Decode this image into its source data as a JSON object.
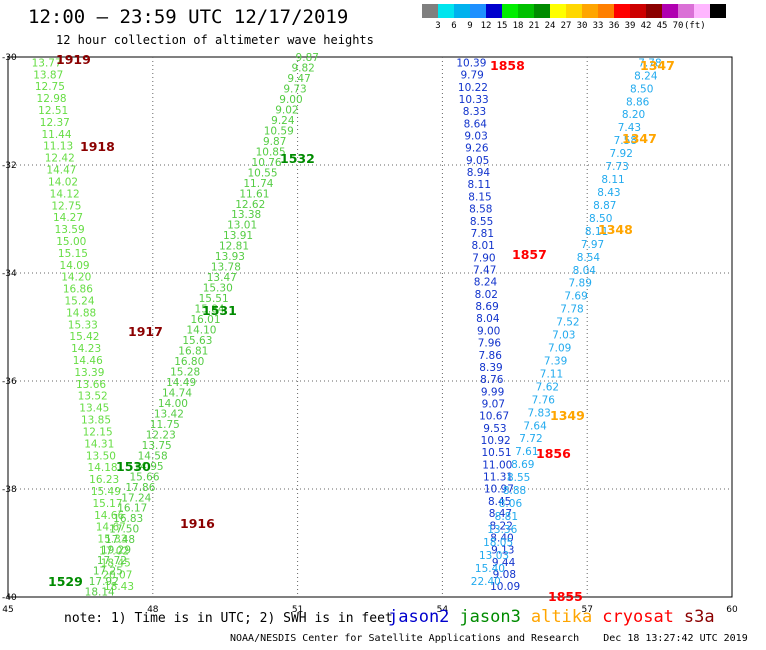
{
  "title": "12:00 – 23:59 UTC 12/17/2019",
  "subtitle": "12 hour collection of altimeter wave heights",
  "colorbar": {
    "colors": [
      "#7f7f7f",
      "#00e5ee",
      "#00b2ee",
      "#1e90ff",
      "#0000cd",
      "#00ee00",
      "#00c000",
      "#008b00",
      "#ffff00",
      "#ffd700",
      "#ffa500",
      "#ff7f00",
      "#ff0000",
      "#cd0000",
      "#8b0000",
      "#b000b0",
      "#da70d6",
      "#ffb6ff",
      "#000000"
    ],
    "labels": [
      "3",
      "6",
      "9",
      "12",
      "15",
      "18",
      "21",
      "24",
      "27",
      "30",
      "33",
      "36",
      "39",
      "42",
      "45",
      "70",
      "(ft)"
    ]
  },
  "axes": {
    "lon_labels": [
      "45",
      "48",
      "51",
      "54",
      "57",
      "60"
    ],
    "lat_labels": [
      "-30",
      "-32",
      "-34",
      "-36",
      "-38",
      "-40"
    ]
  },
  "note": "note: 1) Time is in UTC; 2) SWH is in feet",
  "satellites": [
    {
      "name": "jason2",
      "color": "#0000cd"
    },
    {
      "name": "jason3",
      "color": "#008b00"
    },
    {
      "name": "altika",
      "color": "#ffa500"
    },
    {
      "name": "cryosat",
      "color": "#ff0000"
    },
    {
      "name": "s3a",
      "color": "#8b0000"
    }
  ],
  "footer": {
    "org": "NOAA/NESDIS Center for Satellite Applications and Research",
    "date": "Dec 18 13:27:42 UTC 2019"
  },
  "time_labels": [
    {
      "text": "1919",
      "color": "#8b0000"
    },
    {
      "text": "1918",
      "color": "#8b0000"
    },
    {
      "text": "1917",
      "color": "#8b0000"
    },
    {
      "text": "1916",
      "color": "#8b0000"
    },
    {
      "text": "1532",
      "color": "#008b00"
    },
    {
      "text": "1531",
      "color": "#008b00"
    },
    {
      "text": "1530",
      "color": "#008b00"
    },
    {
      "text": "1529",
      "color": "#008b00"
    },
    {
      "text": "1858",
      "color": "#ff0000"
    },
    {
      "text": "1857",
      "color": "#ff0000"
    },
    {
      "text": "1856",
      "color": "#ff0000"
    },
    {
      "text": "1855",
      "color": "#ff0000"
    },
    {
      "text": "1347",
      "color": "#ffa500"
    },
    {
      "text": "1347",
      "color": "#ffa500"
    },
    {
      "text": "1348",
      "color": "#ffa500"
    },
    {
      "text": "1349",
      "color": "#ffa500"
    }
  ],
  "tracks": [
    {
      "name": "s3a-track",
      "color": "#66dd44",
      "lon": [
        45.8,
        47.3
      ],
      "values": [
        "13.77",
        "13.87",
        "12.75",
        "12.98",
        "12.51",
        "12.37",
        "11.44",
        "11.13",
        "12.42",
        "14.47",
        "14.02",
        "14.12",
        "12.75",
        "14.27",
        "13.59",
        "15.00",
        "15.15",
        "14.09",
        "14.20",
        "16.86",
        "15.24",
        "14.88",
        "15.33",
        "15.42",
        "14.23",
        "14.46",
        "13.39",
        "13.66",
        "13.52",
        "13.45",
        "13.85",
        "12.15",
        "14.31",
        "13.50",
        "14.18",
        "16.23",
        "15.49",
        "15.17",
        "14.66",
        "14.67",
        "15.33",
        "17.02",
        "18.45",
        "20.07",
        "18.43"
      ]
    },
    {
      "name": "jason3-track",
      "color": "#55cc44",
      "lon": [
        51.2,
        46.9
      ],
      "values": [
        "9.87",
        "9.82",
        "9.47",
        "9.73",
        "9.00",
        "9.02",
        "9.24",
        "10.59",
        "9.87",
        "10.85",
        "10.76",
        "10.55",
        "11.74",
        "11.61",
        "12.62",
        "13.38",
        "13.01",
        "13.91",
        "12.81",
        "13.93",
        "13.78",
        "13.47",
        "15.30",
        "15.51",
        "15.84",
        "16.01",
        "14.10",
        "15.63",
        "16.81",
        "16.80",
        "15.28",
        "14.49",
        "14.74",
        "14.00",
        "13.42",
        "11.75",
        "12.23",
        "13.75",
        "14.58",
        "14.95",
        "15.66",
        "17.86",
        "17.24",
        "16.17",
        "16.83",
        "17.50",
        "17.48",
        "19.29",
        "17.72",
        "17.25",
        "17.92",
        "18.14"
      ]
    },
    {
      "name": "cryosat-track",
      "color": "#1133cc",
      "lon": [
        54.6,
        55.3
      ],
      "values": [
        "10.39",
        "9.79",
        "10.22",
        "10.33",
        "8.33",
        "8.64",
        "9.03",
        "9.26",
        "9.05",
        "8.94",
        "8.11",
        "8.15",
        "8.58",
        "8.55",
        "7.81",
        "8.01",
        "7.90",
        "7.47",
        "8.24",
        "8.02",
        "8.69",
        "8.04",
        "9.00",
        "7.96",
        "7.86",
        "8.39",
        "8.76",
        "9.99",
        "9.07",
        "10.67",
        "9.53",
        "10.92",
        "10.51",
        "11.00",
        "11.31",
        "10.97",
        "8.45",
        "8.47",
        "8.22",
        "8.40",
        "9.13",
        "9.44",
        "9.08",
        "10.09"
      ]
    },
    {
      "name": "altika-track",
      "color": "#22aaee",
      "lon": [
        58.3,
        54.9
      ],
      "values": [
        "7.78",
        "8.24",
        "8.50",
        "8.86",
        "8.20",
        "7.43",
        "7.58",
        "7.92",
        "7.73",
        "8.11",
        "8.43",
        "8.87",
        "8.50",
        "8.11",
        "7.97",
        "8.54",
        "8.04",
        "7.89",
        "7.69",
        "7.78",
        "7.52",
        "7.03",
        "7.09",
        "7.39",
        "7.11",
        "7.62",
        "7.76",
        "7.83",
        "7.64",
        "7.72",
        "7.61",
        "8.69",
        "8.55",
        "8.88",
        "8.06",
        "8.81",
        "13.36",
        "18.05",
        "13.03",
        "15.40",
        "22.40"
      ]
    }
  ]
}
